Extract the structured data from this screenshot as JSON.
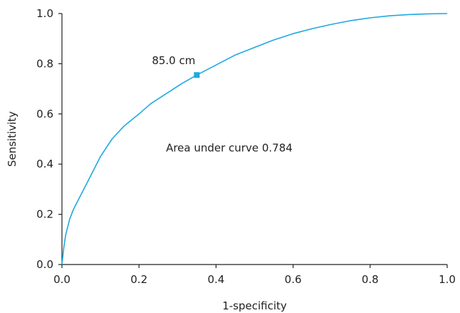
{
  "chart_data": {
    "type": "line",
    "title": "",
    "xlabel": "1-specificity",
    "ylabel": "Sensitivity",
    "xlim": [
      0,
      1
    ],
    "ylim": [
      0,
      1
    ],
    "xticks": [
      "0.0",
      "0.2",
      "0.4",
      "0.6",
      "0.8",
      "1.0"
    ],
    "yticks": [
      "0.0",
      "0.2",
      "0.4",
      "0.6",
      "0.8",
      "1.0"
    ],
    "grid": false,
    "series": [
      {
        "color": "#1fa9e1",
        "x": [
          0,
          0.005,
          0.01,
          0.02,
          0.03,
          0.04,
          0.06,
          0.08,
          0.1,
          0.13,
          0.16,
          0.2,
          0.23,
          0.27,
          0.31,
          0.35,
          0.4,
          0.45,
          0.5,
          0.55,
          0.6,
          0.65,
          0.7,
          0.75,
          0.8,
          0.85,
          0.9,
          0.95,
          1.0
        ],
        "y": [
          0,
          0.07,
          0.12,
          0.18,
          0.22,
          0.25,
          0.31,
          0.37,
          0.43,
          0.5,
          0.55,
          0.6,
          0.64,
          0.68,
          0.72,
          0.755,
          0.795,
          0.835,
          0.865,
          0.895,
          0.92,
          0.94,
          0.957,
          0.972,
          0.983,
          0.991,
          0.996,
          0.999,
          1.0
        ]
      }
    ],
    "cutoff_point": {
      "x": 0.35,
      "y": 0.755,
      "label": "85.0 cm",
      "color": "#1fa9e1"
    },
    "annotation": {
      "text": "Area under curve 0.784",
      "x": 0.27,
      "y": 0.45
    }
  }
}
